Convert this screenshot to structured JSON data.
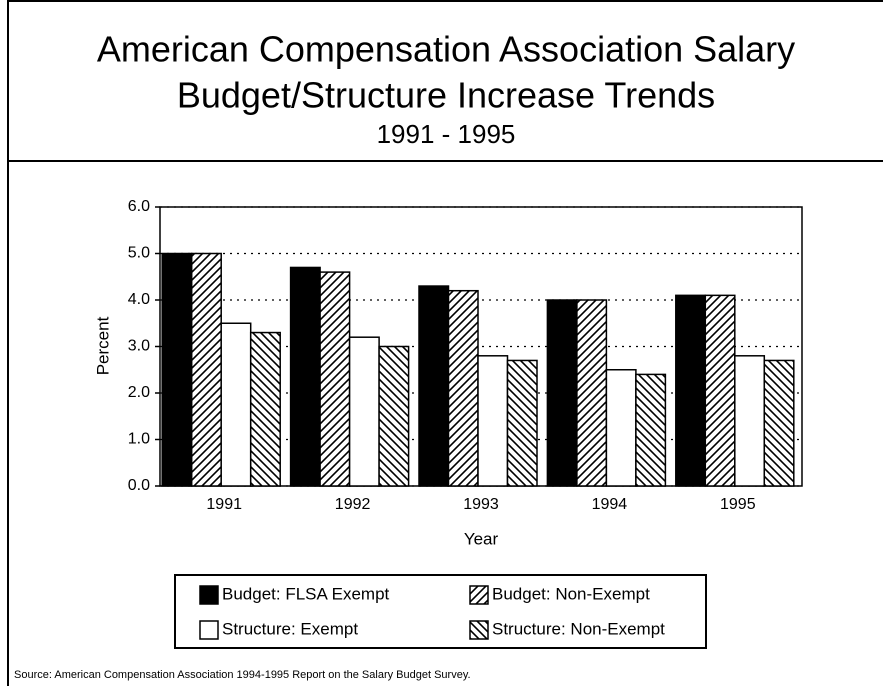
{
  "chart_data": {
    "type": "bar",
    "title": [
      "American Compensation Association Salary",
      "Budget/Structure Increase Trends"
    ],
    "subtitle": "1991 - 1995",
    "x_label": "Year",
    "y_label": "Percent",
    "source": "Source: American Compensation Association 1994-1995 Report on the Salary Budget Survey.",
    "categories": [
      "1991",
      "1992",
      "1993",
      "1994",
      "1995"
    ],
    "series": [
      {
        "name": "Budget: FLSA Exempt",
        "color": "#000000",
        "pattern": "solid",
        "values": [
          5.0,
          4.7,
          4.3,
          4.0,
          4.1
        ]
      },
      {
        "name": "Budget: Non-Exempt",
        "color": "#000000",
        "pattern": "hatch-forward",
        "values": [
          5.0,
          4.6,
          4.2,
          4.0,
          4.1
        ]
      },
      {
        "name": "Structure: Exempt",
        "color": "#000000",
        "pattern": "none",
        "values": [
          3.5,
          3.2,
          2.8,
          2.5,
          2.8
        ]
      },
      {
        "name": "Structure: Non-Exempt",
        "color": "#000000",
        "pattern": "hatch-back",
        "values": [
          3.3,
          3.0,
          2.7,
          2.4,
          2.7
        ]
      }
    ],
    "ylim": [
      0,
      6
    ],
    "yticks": [
      {
        "value": 0,
        "label": "0.0"
      },
      {
        "value": 1,
        "label": "1.0"
      },
      {
        "value": 2,
        "label": "2.0"
      },
      {
        "value": 3,
        "label": "3.0"
      },
      {
        "value": 4,
        "label": "4.0"
      },
      {
        "value": 5,
        "label": "5.0"
      },
      {
        "value": 6,
        "label": "6.0"
      }
    ],
    "grid": true
  }
}
